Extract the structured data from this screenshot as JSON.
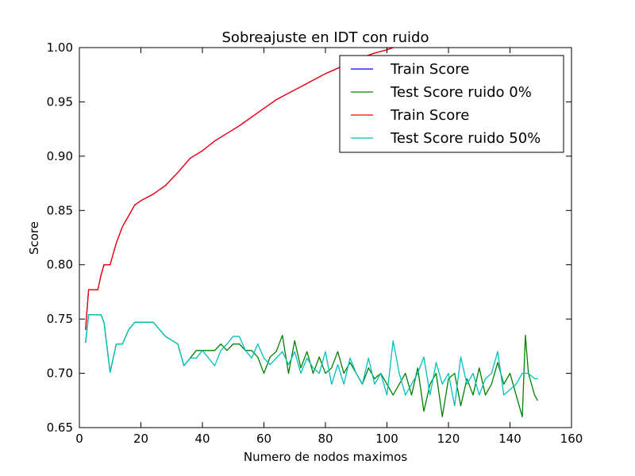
{
  "chart_data": {
    "type": "line",
    "title": "Sobreajuste en IDT con ruido",
    "xlabel": "Numero de nodos maximos",
    "ylabel": "Score",
    "xlim": [
      0,
      160
    ],
    "ylim": [
      0.65,
      1.0
    ],
    "x_ticks": [
      "0",
      "20",
      "40",
      "60",
      "80",
      "100",
      "120",
      "140",
      "160"
    ],
    "y_ticks": [
      "0.65",
      "0.70",
      "0.75",
      "0.80",
      "0.85",
      "0.90",
      "0.95",
      "1.00"
    ],
    "grid": false,
    "legend_position": "top-right",
    "series": [
      {
        "name": "Train Score",
        "color": "#0000ff",
        "x": [
          2,
          3,
          4,
          5,
          6,
          7,
          8,
          10,
          12,
          14,
          16,
          18,
          20,
          24,
          28,
          32,
          36,
          40,
          44,
          48,
          52,
          56,
          60,
          64,
          68,
          72,
          76,
          80,
          84,
          88,
          92,
          96,
          100,
          102
        ],
        "y": [
          0.74,
          0.777,
          0.777,
          0.777,
          0.777,
          0.79,
          0.8,
          0.8,
          0.82,
          0.835,
          0.845,
          0.855,
          0.859,
          0.865,
          0.873,
          0.885,
          0.898,
          0.905,
          0.914,
          0.921,
          0.928,
          0.936,
          0.944,
          0.952,
          0.958,
          0.964,
          0.97,
          0.976,
          0.981,
          0.986,
          0.991,
          0.995,
          0.998,
          1.0
        ]
      },
      {
        "name": "Test Score ruido 0%",
        "color": "#008000",
        "x": [
          2,
          3,
          4,
          5,
          6,
          7,
          8,
          10,
          12,
          14,
          16,
          18,
          20,
          24,
          28,
          32,
          34,
          36,
          38,
          40,
          44,
          46,
          48,
          50,
          52,
          54,
          56,
          58,
          60,
          62,
          64,
          66,
          68,
          70,
          72,
          74,
          76,
          78,
          80,
          82,
          84,
          86,
          88,
          90,
          92,
          94,
          96,
          98,
          100,
          102,
          104,
          106,
          108,
          110,
          112,
          114,
          116,
          118,
          120,
          122,
          124,
          126,
          128,
          130,
          132,
          134,
          136,
          138,
          140,
          142,
          144,
          145,
          146,
          147,
          148,
          149
        ],
        "y": [
          0.728,
          0.754,
          0.754,
          0.754,
          0.754,
          0.754,
          0.747,
          0.701,
          0.727,
          0.727,
          0.74,
          0.747,
          0.747,
          0.747,
          0.734,
          0.727,
          0.707,
          0.714,
          0.721,
          0.721,
          0.721,
          0.727,
          0.721,
          0.727,
          0.727,
          0.721,
          0.721,
          0.715,
          0.7,
          0.715,
          0.72,
          0.735,
          0.7,
          0.73,
          0.705,
          0.72,
          0.7,
          0.715,
          0.7,
          0.705,
          0.72,
          0.7,
          0.71,
          0.7,
          0.69,
          0.705,
          0.695,
          0.7,
          0.69,
          0.68,
          0.69,
          0.7,
          0.68,
          0.705,
          0.665,
          0.69,
          0.7,
          0.66,
          0.695,
          0.7,
          0.67,
          0.695,
          0.68,
          0.705,
          0.68,
          0.69,
          0.71,
          0.69,
          0.7,
          0.68,
          0.66,
          0.735,
          0.7,
          0.69,
          0.68,
          0.675
        ]
      },
      {
        "name": "Train Score",
        "color": "#ff0000",
        "x": [
          2,
          3,
          4,
          5,
          6,
          7,
          8,
          10,
          12,
          14,
          16,
          18,
          20,
          24,
          28,
          32,
          36,
          40,
          44,
          48,
          52,
          56,
          60,
          64,
          68,
          72,
          76,
          80,
          84,
          88,
          92,
          96,
          100,
          102
        ],
        "y": [
          0.74,
          0.777,
          0.777,
          0.777,
          0.777,
          0.79,
          0.8,
          0.8,
          0.82,
          0.835,
          0.845,
          0.855,
          0.859,
          0.865,
          0.873,
          0.885,
          0.898,
          0.905,
          0.914,
          0.921,
          0.928,
          0.936,
          0.944,
          0.952,
          0.958,
          0.964,
          0.97,
          0.976,
          0.981,
          0.986,
          0.991,
          0.995,
          0.998,
          1.0
        ]
      },
      {
        "name": "Test Score ruido 50%",
        "color": "#00bfbf",
        "x": [
          2,
          3,
          4,
          5,
          6,
          7,
          8,
          10,
          12,
          14,
          16,
          18,
          20,
          24,
          28,
          32,
          34,
          36,
          38,
          40,
          44,
          46,
          48,
          50,
          52,
          54,
          56,
          58,
          60,
          62,
          64,
          66,
          68,
          70,
          72,
          74,
          76,
          78,
          80,
          82,
          84,
          86,
          88,
          90,
          92,
          94,
          96,
          98,
          100,
          102,
          104,
          106,
          108,
          110,
          112,
          114,
          116,
          118,
          120,
          122,
          124,
          126,
          128,
          130,
          132,
          134,
          136,
          138,
          140,
          142,
          144,
          146,
          148,
          149
        ],
        "y": [
          0.728,
          0.754,
          0.754,
          0.754,
          0.754,
          0.754,
          0.747,
          0.701,
          0.727,
          0.727,
          0.74,
          0.747,
          0.747,
          0.747,
          0.734,
          0.727,
          0.707,
          0.714,
          0.714,
          0.721,
          0.707,
          0.721,
          0.727,
          0.734,
          0.734,
          0.721,
          0.714,
          0.727,
          0.714,
          0.708,
          0.714,
          0.72,
          0.708,
          0.72,
          0.7,
          0.714,
          0.705,
          0.7,
          0.72,
          0.69,
          0.708,
          0.69,
          0.714,
          0.7,
          0.69,
          0.714,
          0.69,
          0.7,
          0.68,
          0.73,
          0.7,
          0.68,
          0.69,
          0.7,
          0.715,
          0.68,
          0.71,
          0.69,
          0.7,
          0.67,
          0.715,
          0.69,
          0.7,
          0.68,
          0.695,
          0.7,
          0.72,
          0.68,
          0.685,
          0.69,
          0.7,
          0.7,
          0.695,
          0.695
        ]
      }
    ]
  }
}
